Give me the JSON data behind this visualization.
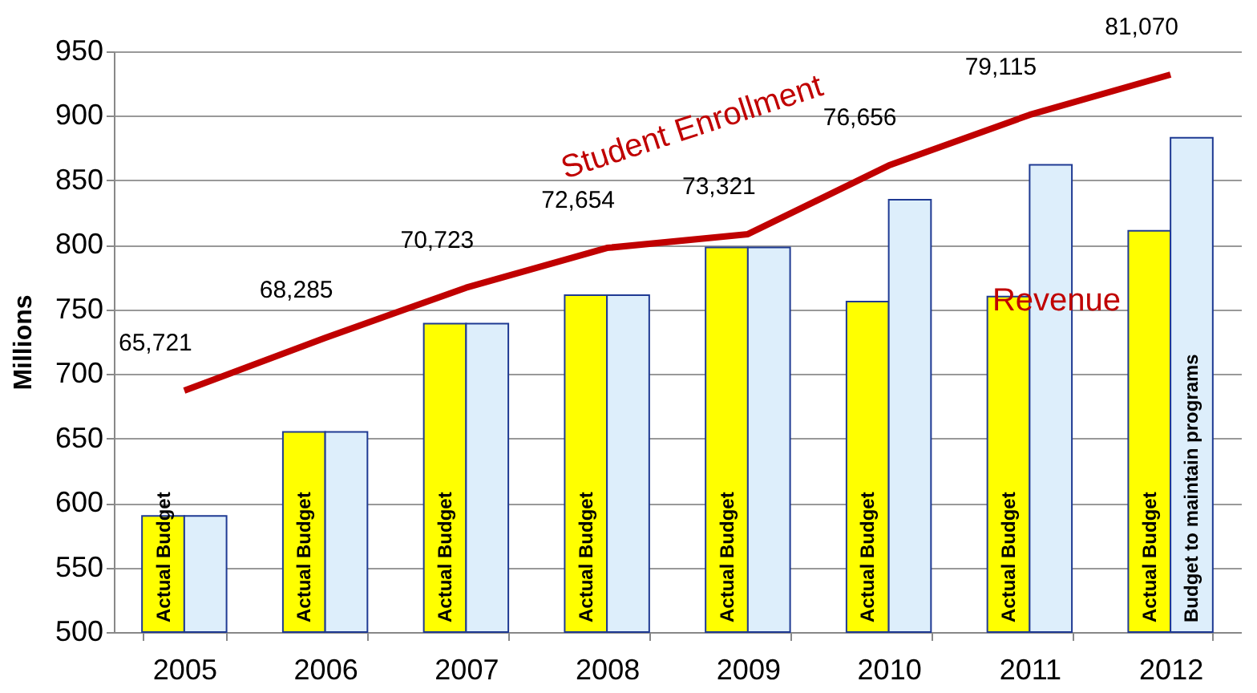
{
  "chart_data": {
    "type": "bar",
    "ylabel": "Millions",
    "categories": [
      "2005",
      "2006",
      "2007",
      "2008",
      "2009",
      "2010",
      "2011",
      "2012"
    ],
    "series": [
      {
        "name": "Actual Budget",
        "color": "#ffff00",
        "values": [
          590,
          655,
          739,
          761,
          798,
          756,
          760,
          811
        ]
      },
      {
        "name": "Budget to maintain programs",
        "color": "#ddeefb",
        "values": [
          590,
          655,
          739,
          761,
          798,
          835,
          862,
          883
        ]
      },
      {
        "name": "Student Enrollment",
        "type": "line",
        "axis": "y2",
        "color": "#c00000",
        "values": [
          65721,
          68285,
          70723,
          72654,
          73321,
          76656,
          79115,
          81070
        ],
        "value_labels": [
          "65,721",
          "68,285",
          "70,723",
          "72,654",
          "73,321",
          "76,656",
          "79,115",
          "81,070"
        ]
      }
    ],
    "ylim": [
      500,
      950
    ],
    "yticks": [
      500,
      550,
      600,
      650,
      700,
      750,
      800,
      850,
      900,
      950
    ],
    "y2lim": [
      54000,
      82200
    ],
    "tick_labels": "xy",
    "grid": "y",
    "annotations": [
      "Revenue"
    ]
  }
}
